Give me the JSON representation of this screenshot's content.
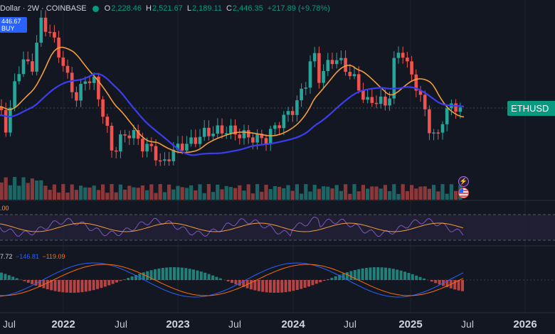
{
  "header": {
    "symbol_text": "Dollar · 2W · COINBASE",
    "status_color": "#089981",
    "ohlc": [
      {
        "label": "O",
        "value": "2,228.46"
      },
      {
        "label": "H",
        "value": "2,521.67"
      },
      {
        "label": "L",
        "value": "2,189.11"
      },
      {
        "label": "C",
        "value": "2,446.35"
      },
      {
        "label": "",
        "value": "+217.89 (+9.78%)"
      }
    ]
  },
  "buy_box": {
    "price": "446.67",
    "action": "BUY"
  },
  "price_tag": {
    "label": "ETHUSD"
  },
  "indicator_rsi": {
    "value_text": ".00"
  },
  "indicator_macd": {
    "values": [
      "7.72",
      "−146.81",
      "−119.09"
    ],
    "colors": [
      "#787b86",
      "#2962ff",
      "#ff6d00"
    ]
  },
  "x_axis": {
    "years": [
      "2022",
      "2023",
      "2024",
      "2025",
      "2026"
    ],
    "months": [
      "Jul",
      "Jul",
      "Jul",
      "Jul",
      "Jul"
    ],
    "first_month": "Jul"
  },
  "colors": {
    "background": "#131722",
    "bull": "#26a69a",
    "bear": "#ef5350",
    "ma_fast": "#f59d3a",
    "ma_slow": "#3b3ef0",
    "rsi_line": "#7e57c2",
    "rsi_band": "#2a2540"
  },
  "event_icons": [
    "lightning-icon",
    "us-flag-icon"
  ]
}
